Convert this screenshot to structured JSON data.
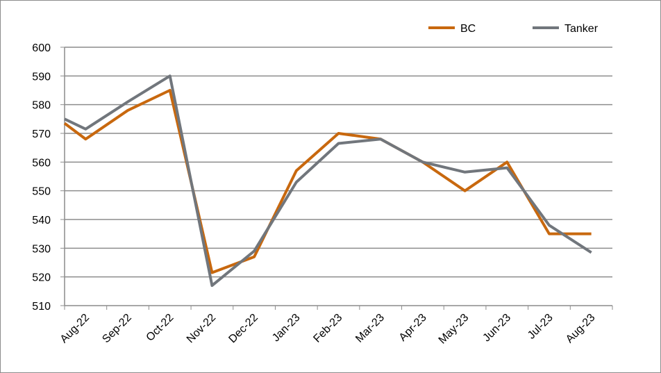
{
  "chart_data": {
    "type": "line",
    "categories": [
      null,
      "Aug-22",
      "Sep-22",
      "Oct-22",
      "Nov-22",
      "Dec-22",
      "Jan-23",
      "Feb-23",
      "Mar-23",
      "Apr-23",
      "May-23",
      "Jun-23",
      "Jul-23",
      "Aug-23"
    ],
    "series": [
      {
        "name": "BC",
        "color": "#c8680e",
        "values": [
          573.5,
          568,
          578,
          585,
          521.5,
          527,
          557,
          570,
          568,
          560,
          550,
          560,
          535,
          535
        ]
      },
      {
        "name": "Tanker",
        "color": "#71767c",
        "values": [
          575,
          571.5,
          581,
          590,
          517,
          529,
          553,
          566.5,
          568,
          560,
          556.5,
          558,
          538,
          528.5
        ]
      }
    ],
    "ylim": [
      510,
      600
    ],
    "yticks": [
      510,
      520,
      530,
      540,
      550,
      560,
      570,
      580,
      590,
      600
    ],
    "grid": true,
    "legend": "top"
  }
}
